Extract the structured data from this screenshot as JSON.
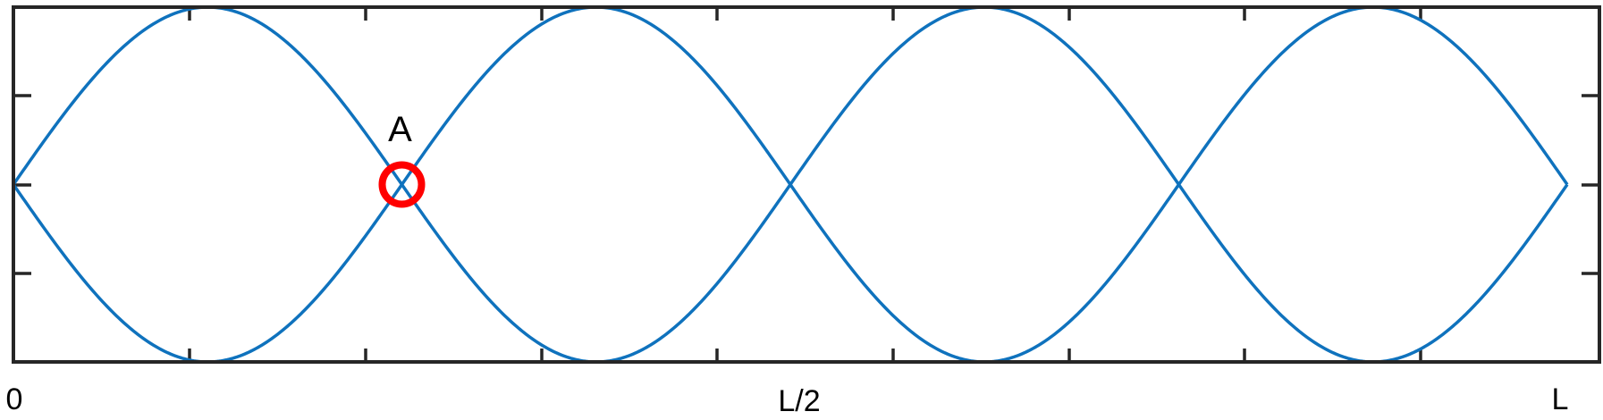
{
  "diagram": {
    "type": "standing-wave",
    "harmonics": 4,
    "x_tick_labels": [
      "0",
      "L/2",
      "L"
    ],
    "colors": {
      "wave": "#0f72bd",
      "marker": "#ff0000",
      "frame": "#262626"
    },
    "marker": {
      "label": "A",
      "position_fraction_of_L": 0.25
    }
  }
}
